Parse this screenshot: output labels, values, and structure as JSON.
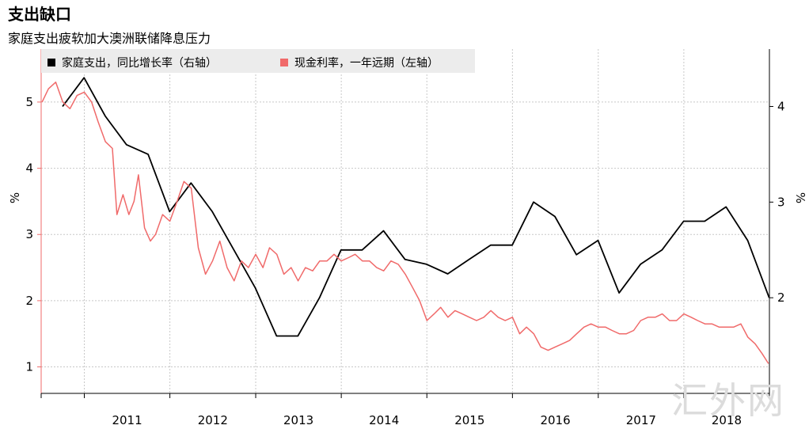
{
  "title": "支出缺口",
  "subtitle": "家庭支出疲软加大澳洲联储降息压力",
  "watermark": "汇外网",
  "colors": {
    "spending": "#000000",
    "cash_rate": "#f06a6a",
    "grid": "#c8c8c8",
    "legend_bg": "#ececec"
  },
  "chart_data": {
    "type": "line",
    "title": "支出缺口",
    "subtitle": "家庭支出疲软加大澳洲联储降息压力",
    "x_axis": {
      "tick_labels": [
        "2011",
        "2012",
        "2013",
        "2014",
        "2015",
        "2016",
        "2017",
        "2018"
      ],
      "range": [
        "2010-07-01",
        "2019-01-01"
      ]
    },
    "left_axis": {
      "label": "%",
      "range": [
        0.6,
        5.8
      ],
      "ticks": [
        1,
        2,
        3,
        4,
        5
      ]
    },
    "right_axis": {
      "label": "%",
      "range": [
        1.0,
        4.6
      ],
      "ticks": [
        2,
        3,
        4
      ]
    },
    "legend": {
      "placement": "top-left"
    },
    "grid": true,
    "series": [
      {
        "name": "家庭支出，同比增长率（右轴）",
        "axis": "right",
        "color": "#000000",
        "points": [
          [
            "2010-09-30",
            4.0
          ],
          [
            "2010-12-31",
            4.3
          ],
          [
            "2011-03-31",
            3.9
          ],
          [
            "2011-06-30",
            3.6
          ],
          [
            "2011-09-30",
            3.5
          ],
          [
            "2011-12-31",
            2.9
          ],
          [
            "2012-03-31",
            3.2
          ],
          [
            "2012-06-30",
            2.9
          ],
          [
            "2012-09-30",
            2.5
          ],
          [
            "2012-12-31",
            2.1
          ],
          [
            "2013-03-31",
            1.6
          ],
          [
            "2013-06-30",
            1.6
          ],
          [
            "2013-09-30",
            2.0
          ],
          [
            "2013-12-31",
            2.5
          ],
          [
            "2014-03-31",
            2.5
          ],
          [
            "2014-06-30",
            2.7
          ],
          [
            "2014-09-30",
            2.4
          ],
          [
            "2014-12-31",
            2.35
          ],
          [
            "2015-03-31",
            2.25
          ],
          [
            "2015-06-30",
            2.4
          ],
          [
            "2015-09-30",
            2.55
          ],
          [
            "2015-12-31",
            2.55
          ],
          [
            "2016-03-31",
            3.0
          ],
          [
            "2016-06-30",
            2.85
          ],
          [
            "2016-09-30",
            2.45
          ],
          [
            "2016-12-31",
            2.6
          ],
          [
            "2017-03-31",
            2.05
          ],
          [
            "2017-06-30",
            2.35
          ],
          [
            "2017-09-30",
            2.5
          ],
          [
            "2017-12-31",
            2.8
          ],
          [
            "2018-03-31",
            2.8
          ],
          [
            "2018-06-30",
            2.95
          ],
          [
            "2018-09-30",
            2.6
          ],
          [
            "2018-12-31",
            2.0
          ]
        ]
      },
      {
        "name": "现金利率，一年远期（左轴）",
        "axis": "left",
        "color": "#f06a6a",
        "points": [
          [
            "2010-07-05",
            5.0
          ],
          [
            "2010-08-01",
            5.2
          ],
          [
            "2010-09-01",
            5.3
          ],
          [
            "2010-10-01",
            5.0
          ],
          [
            "2010-11-01",
            4.9
          ],
          [
            "2010-12-01",
            5.1
          ],
          [
            "2011-01-01",
            5.15
          ],
          [
            "2011-02-01",
            5.0
          ],
          [
            "2011-03-01",
            4.7
          ],
          [
            "2011-04-01",
            4.4
          ],
          [
            "2011-05-01",
            4.3
          ],
          [
            "2011-05-20",
            3.3
          ],
          [
            "2011-06-15",
            3.6
          ],
          [
            "2011-07-10",
            3.3
          ],
          [
            "2011-08-01",
            3.5
          ],
          [
            "2011-08-20",
            3.9
          ],
          [
            "2011-09-15",
            3.1
          ],
          [
            "2011-10-10",
            2.9
          ],
          [
            "2011-11-01",
            3.0
          ],
          [
            "2011-12-01",
            3.3
          ],
          [
            "2012-01-01",
            3.2
          ],
          [
            "2012-02-01",
            3.5
          ],
          [
            "2012-03-01",
            3.8
          ],
          [
            "2012-04-01",
            3.7
          ],
          [
            "2012-05-01",
            2.8
          ],
          [
            "2012-06-01",
            2.4
          ],
          [
            "2012-07-01",
            2.6
          ],
          [
            "2012-08-01",
            2.9
          ],
          [
            "2012-09-01",
            2.5
          ],
          [
            "2012-10-01",
            2.3
          ],
          [
            "2012-11-01",
            2.6
          ],
          [
            "2012-12-01",
            2.5
          ],
          [
            "2013-01-01",
            2.7
          ],
          [
            "2013-02-01",
            2.5
          ],
          [
            "2013-03-01",
            2.8
          ],
          [
            "2013-04-01",
            2.7
          ],
          [
            "2013-05-01",
            2.4
          ],
          [
            "2013-06-01",
            2.5
          ],
          [
            "2013-07-01",
            2.3
          ],
          [
            "2013-08-01",
            2.5
          ],
          [
            "2013-09-01",
            2.45
          ],
          [
            "2013-10-01",
            2.6
          ],
          [
            "2013-11-01",
            2.6
          ],
          [
            "2013-12-01",
            2.7
          ],
          [
            "2014-01-01",
            2.6
          ],
          [
            "2014-02-01",
            2.65
          ],
          [
            "2014-03-01",
            2.7
          ],
          [
            "2014-04-01",
            2.6
          ],
          [
            "2014-05-01",
            2.6
          ],
          [
            "2014-06-01",
            2.5
          ],
          [
            "2014-07-01",
            2.45
          ],
          [
            "2014-08-01",
            2.6
          ],
          [
            "2014-09-01",
            2.55
          ],
          [
            "2014-10-01",
            2.4
          ],
          [
            "2014-11-01",
            2.2
          ],
          [
            "2014-12-01",
            2.0
          ],
          [
            "2015-01-01",
            1.7
          ],
          [
            "2015-02-01",
            1.8
          ],
          [
            "2015-03-01",
            1.9
          ],
          [
            "2015-04-01",
            1.75
          ],
          [
            "2015-05-01",
            1.85
          ],
          [
            "2015-06-01",
            1.8
          ],
          [
            "2015-07-01",
            1.75
          ],
          [
            "2015-08-01",
            1.7
          ],
          [
            "2015-09-01",
            1.75
          ],
          [
            "2015-10-01",
            1.85
          ],
          [
            "2015-11-01",
            1.75
          ],
          [
            "2015-12-01",
            1.7
          ],
          [
            "2016-01-01",
            1.75
          ],
          [
            "2016-02-01",
            1.5
          ],
          [
            "2016-03-01",
            1.6
          ],
          [
            "2016-04-01",
            1.5
          ],
          [
            "2016-05-01",
            1.3
          ],
          [
            "2016-06-01",
            1.25
          ],
          [
            "2016-07-01",
            1.3
          ],
          [
            "2016-08-01",
            1.35
          ],
          [
            "2016-09-01",
            1.4
          ],
          [
            "2016-10-01",
            1.5
          ],
          [
            "2016-11-01",
            1.6
          ],
          [
            "2016-12-01",
            1.65
          ],
          [
            "2017-01-01",
            1.6
          ],
          [
            "2017-02-01",
            1.6
          ],
          [
            "2017-03-01",
            1.55
          ],
          [
            "2017-04-01",
            1.5
          ],
          [
            "2017-05-01",
            1.5
          ],
          [
            "2017-06-01",
            1.55
          ],
          [
            "2017-07-01",
            1.7
          ],
          [
            "2017-08-01",
            1.75
          ],
          [
            "2017-09-01",
            1.75
          ],
          [
            "2017-10-01",
            1.8
          ],
          [
            "2017-11-01",
            1.7
          ],
          [
            "2017-12-01",
            1.7
          ],
          [
            "2018-01-01",
            1.8
          ],
          [
            "2018-02-01",
            1.75
          ],
          [
            "2018-03-01",
            1.7
          ],
          [
            "2018-04-01",
            1.65
          ],
          [
            "2018-05-01",
            1.65
          ],
          [
            "2018-06-01",
            1.6
          ],
          [
            "2018-07-01",
            1.6
          ],
          [
            "2018-08-01",
            1.6
          ],
          [
            "2018-09-01",
            1.65
          ],
          [
            "2018-10-01",
            1.45
          ],
          [
            "2018-11-01",
            1.35
          ],
          [
            "2018-12-01",
            1.2
          ],
          [
            "2018-12-28",
            1.05
          ]
        ]
      }
    ]
  }
}
